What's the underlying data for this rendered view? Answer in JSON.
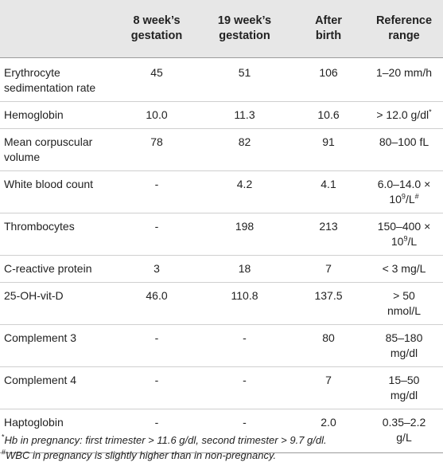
{
  "table": {
    "headers": {
      "test": "",
      "col1_line1": "8 week’s",
      "col1_line2": "gestation",
      "col2_line1": "19 week’s",
      "col2_line2": "gestation",
      "col3_line1": "After",
      "col3_line2": "birth",
      "col4_line1": "Reference",
      "col4_line2": "range"
    },
    "rows": [
      {
        "test_line1": "Erythrocyte",
        "test_line2": "sedimentation rate",
        "w8": "45",
        "w19": "51",
        "after": "106",
        "ref_line1": "1–20 mm/h",
        "ref_line2": ""
      },
      {
        "test_line1": "Hemoglobin",
        "test_line2": "",
        "w8": "10.0",
        "w19": "11.3",
        "after": "10.6",
        "ref_line1": "> 12.0 g/dl",
        "ref_mark": "*",
        "ref_line2": ""
      },
      {
        "test_line1": "Mean corpuscular",
        "test_line2": "volume",
        "w8": "78",
        "w19": "82",
        "after": "91",
        "ref_line1": "80–100 fL",
        "ref_line2": ""
      },
      {
        "test_line1": "White blood count",
        "test_line2": "",
        "w8": "-",
        "w19": "4.2",
        "after": "4.1",
        "ref_line1": "6.0–14.0 ×",
        "ref_line2_base": "10",
        "ref_line2_exp": "9",
        "ref_line2_unit": "/L",
        "ref_mark": "#"
      },
      {
        "test_line1": "Thrombocytes",
        "test_line2": "",
        "w8": "-",
        "w19": "198",
        "after": "213",
        "ref_line1": "150–400 ×",
        "ref_line2_base": "10",
        "ref_line2_exp": "9",
        "ref_line2_unit": "/L"
      },
      {
        "test_line1": "C-reactive protein",
        "test_line2": "",
        "w8": "3",
        "w19": "18",
        "after": "7",
        "ref_line1": "< 3 mg/L",
        "ref_line2": ""
      },
      {
        "test_line1": "25-OH-vit-D",
        "test_line2": "",
        "w8": "46.0",
        "w19": "110.8",
        "after": "137.5",
        "ref_line1": "> 50",
        "ref_line2": "nmol/L"
      },
      {
        "test_line1": "Complement 3",
        "test_line2": "",
        "w8": "-",
        "w19": "-",
        "after": "80",
        "ref_line1": "85–180",
        "ref_line2": "mg/dl"
      },
      {
        "test_line1": "Complement 4",
        "test_line2": "",
        "w8": "-",
        "w19": "-",
        "after": "7",
        "ref_line1": "15–50",
        "ref_line2": "mg/dl"
      },
      {
        "test_line1": "Haptoglobin",
        "test_line2": "",
        "w8": "-",
        "w19": "-",
        "after": "2.0",
        "ref_line1": "0.35–2.2",
        "ref_line2": "g/L"
      }
    ]
  },
  "footnotes": {
    "hb_mark": "*",
    "hb_text": "Hb in pregnancy: first trimester > 11.6 g/dl, second trimester > 9.7 g/dl.",
    "wbc_mark": "#",
    "wbc_text": "WBC in pregnancy is slightly higher than in non-pregnancy."
  }
}
